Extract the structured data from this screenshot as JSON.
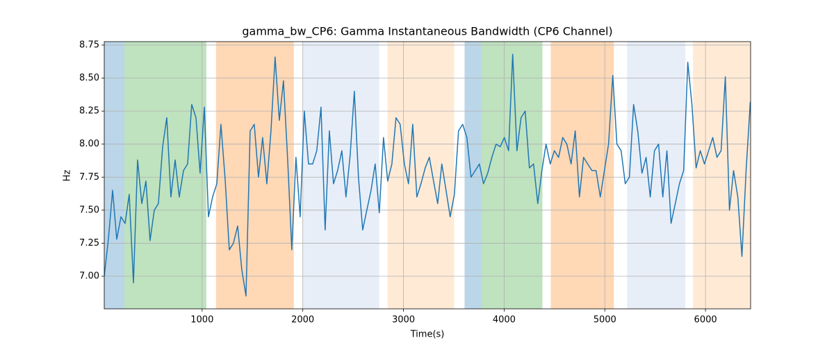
{
  "chart_data": {
    "type": "line",
    "title": "gamma_bw_CP6: Gamma Instantaneous Bandwidth (CP6 Channel)",
    "xlabel": "Time(s)",
    "ylabel": "Hz",
    "xlim": [
      28,
      6448
    ],
    "ylim": [
      6.753,
      8.776
    ],
    "xticks": [
      1000,
      2000,
      3000,
      4000,
      5000,
      6000
    ],
    "yticks": [
      {
        "value": 7.0,
        "label": "7.00"
      },
      {
        "value": 7.25,
        "label": "7.25"
      },
      {
        "value": 7.5,
        "label": "7.50"
      },
      {
        "value": 7.75,
        "label": "7.75"
      },
      {
        "value": 8.0,
        "label": "8.00"
      },
      {
        "value": 8.25,
        "label": "8.25"
      },
      {
        "value": 8.5,
        "label": "8.50"
      },
      {
        "value": 8.75,
        "label": "8.75"
      }
    ],
    "grid": true,
    "span_alpha": 0.3,
    "spans": [
      {
        "x0": 28,
        "x1": 228,
        "color": "#1f77b4"
      },
      {
        "x0": 228,
        "x1": 1042,
        "color": "#2ca02c"
      },
      {
        "x0": 1138,
        "x1": 1911,
        "color": "#ff7f0e"
      },
      {
        "x0": 2000,
        "x1": 2759,
        "color": "#aec7e8"
      },
      {
        "x0": 2842,
        "x1": 3504,
        "color": "#ffbb78"
      },
      {
        "x0": 3607,
        "x1": 3773,
        "color": "#1f77b4"
      },
      {
        "x0": 3773,
        "x1": 4380,
        "color": "#2ca02c"
      },
      {
        "x0": 4463,
        "x1": 5090,
        "color": "#ff7f0e"
      },
      {
        "x0": 5221,
        "x1": 5800,
        "color": "#aec7e8"
      },
      {
        "x0": 5876,
        "x1": 6448,
        "color": "#ffbb78"
      }
    ],
    "x": [
      28,
      69,
      111,
      152,
      194,
      235,
      276,
      318,
      359,
      401,
      442,
      483,
      525,
      566,
      608,
      649,
      690,
      732,
      773,
      815,
      856,
      897,
      939,
      980,
      1022,
      1063,
      1104,
      1146,
      1187,
      1229,
      1270,
      1311,
      1353,
      1394,
      1436,
      1477,
      1518,
      1560,
      1601,
      1643,
      1684,
      1725,
      1767,
      1808,
      1850,
      1891,
      1932,
      1974,
      2015,
      2057,
      2098,
      2139,
      2181,
      2222,
      2264,
      2305,
      2346,
      2388,
      2429,
      2471,
      2512,
      2553,
      2595,
      2636,
      2678,
      2719,
      2760,
      2802,
      2843,
      2885,
      2926,
      2967,
      3009,
      3050,
      3092,
      3133,
      3174,
      3216,
      3257,
      3299,
      3340,
      3381,
      3423,
      3464,
      3506,
      3547,
      3588,
      3630,
      3671,
      3713,
      3754,
      3795,
      3837,
      3878,
      3920,
      3961,
      4002,
      4044,
      4085,
      4127,
      4168,
      4209,
      4251,
      4292,
      4334,
      4375,
      4416,
      4458,
      4499,
      4541,
      4582,
      4623,
      4665,
      4706,
      4748,
      4789,
      4830,
      4872,
      4913,
      4955,
      4996,
      5037,
      5079,
      5120,
      5162,
      5203,
      5244,
      5286,
      5327,
      5369,
      5410,
      5451,
      5493,
      5534,
      5576,
      5617,
      5658,
      5700,
      5741,
      5783,
      5824,
      5865,
      5907,
      5948,
      5990,
      6031,
      6072,
      6114,
      6155,
      6197,
      6238,
      6279,
      6321,
      6362,
      6404,
      6445
    ],
    "series": [
      {
        "color": "#1f77b4",
        "values": [
          7.0,
          7.28,
          7.65,
          7.28,
          7.45,
          7.4,
          7.62,
          6.95,
          7.88,
          7.55,
          7.72,
          7.27,
          7.5,
          7.55,
          7.98,
          8.2,
          7.6,
          7.88,
          7.6,
          7.8,
          7.85,
          8.3,
          8.2,
          7.78,
          8.28,
          7.45,
          7.6,
          7.7,
          8.15,
          7.73,
          7.2,
          7.25,
          7.38,
          7.05,
          6.85,
          8.1,
          8.15,
          7.75,
          8.05,
          7.7,
          8.1,
          8.66,
          8.18,
          8.48,
          7.88,
          7.2,
          7.9,
          7.45,
          8.25,
          7.85,
          7.85,
          7.95,
          8.28,
          7.35,
          8.1,
          7.7,
          7.8,
          7.95,
          7.6,
          7.92,
          8.4,
          7.75,
          7.35,
          7.5,
          7.65,
          7.85,
          7.48,
          8.05,
          7.72,
          7.85,
          8.2,
          8.15,
          7.85,
          7.7,
          8.15,
          7.6,
          7.7,
          7.82,
          7.9,
          7.72,
          7.55,
          7.85,
          7.65,
          7.45,
          7.62,
          8.1,
          8.15,
          8.05,
          7.75,
          7.8,
          7.85,
          7.7,
          7.78,
          7.9,
          8.0,
          7.98,
          8.05,
          7.95,
          8.68,
          7.95,
          8.2,
          8.25,
          7.82,
          7.85,
          7.55,
          7.8,
          8.0,
          7.85,
          7.95,
          7.9,
          8.05,
          8.0,
          7.85,
          8.1,
          7.6,
          7.9,
          7.85,
          7.8,
          7.8,
          7.6,
          7.8,
          8.0,
          8.52,
          8.0,
          7.95,
          7.7,
          7.75,
          8.3,
          8.1,
          7.78,
          7.9,
          7.6,
          7.95,
          8.0,
          7.6,
          7.95,
          7.4,
          7.55,
          7.7,
          7.8,
          8.62,
          8.3,
          7.82,
          7.95,
          7.85,
          7.95,
          8.05,
          7.9,
          7.95,
          8.51,
          7.5,
          7.8,
          7.6,
          7.15,
          7.81,
          8.32
        ]
      }
    ]
  }
}
